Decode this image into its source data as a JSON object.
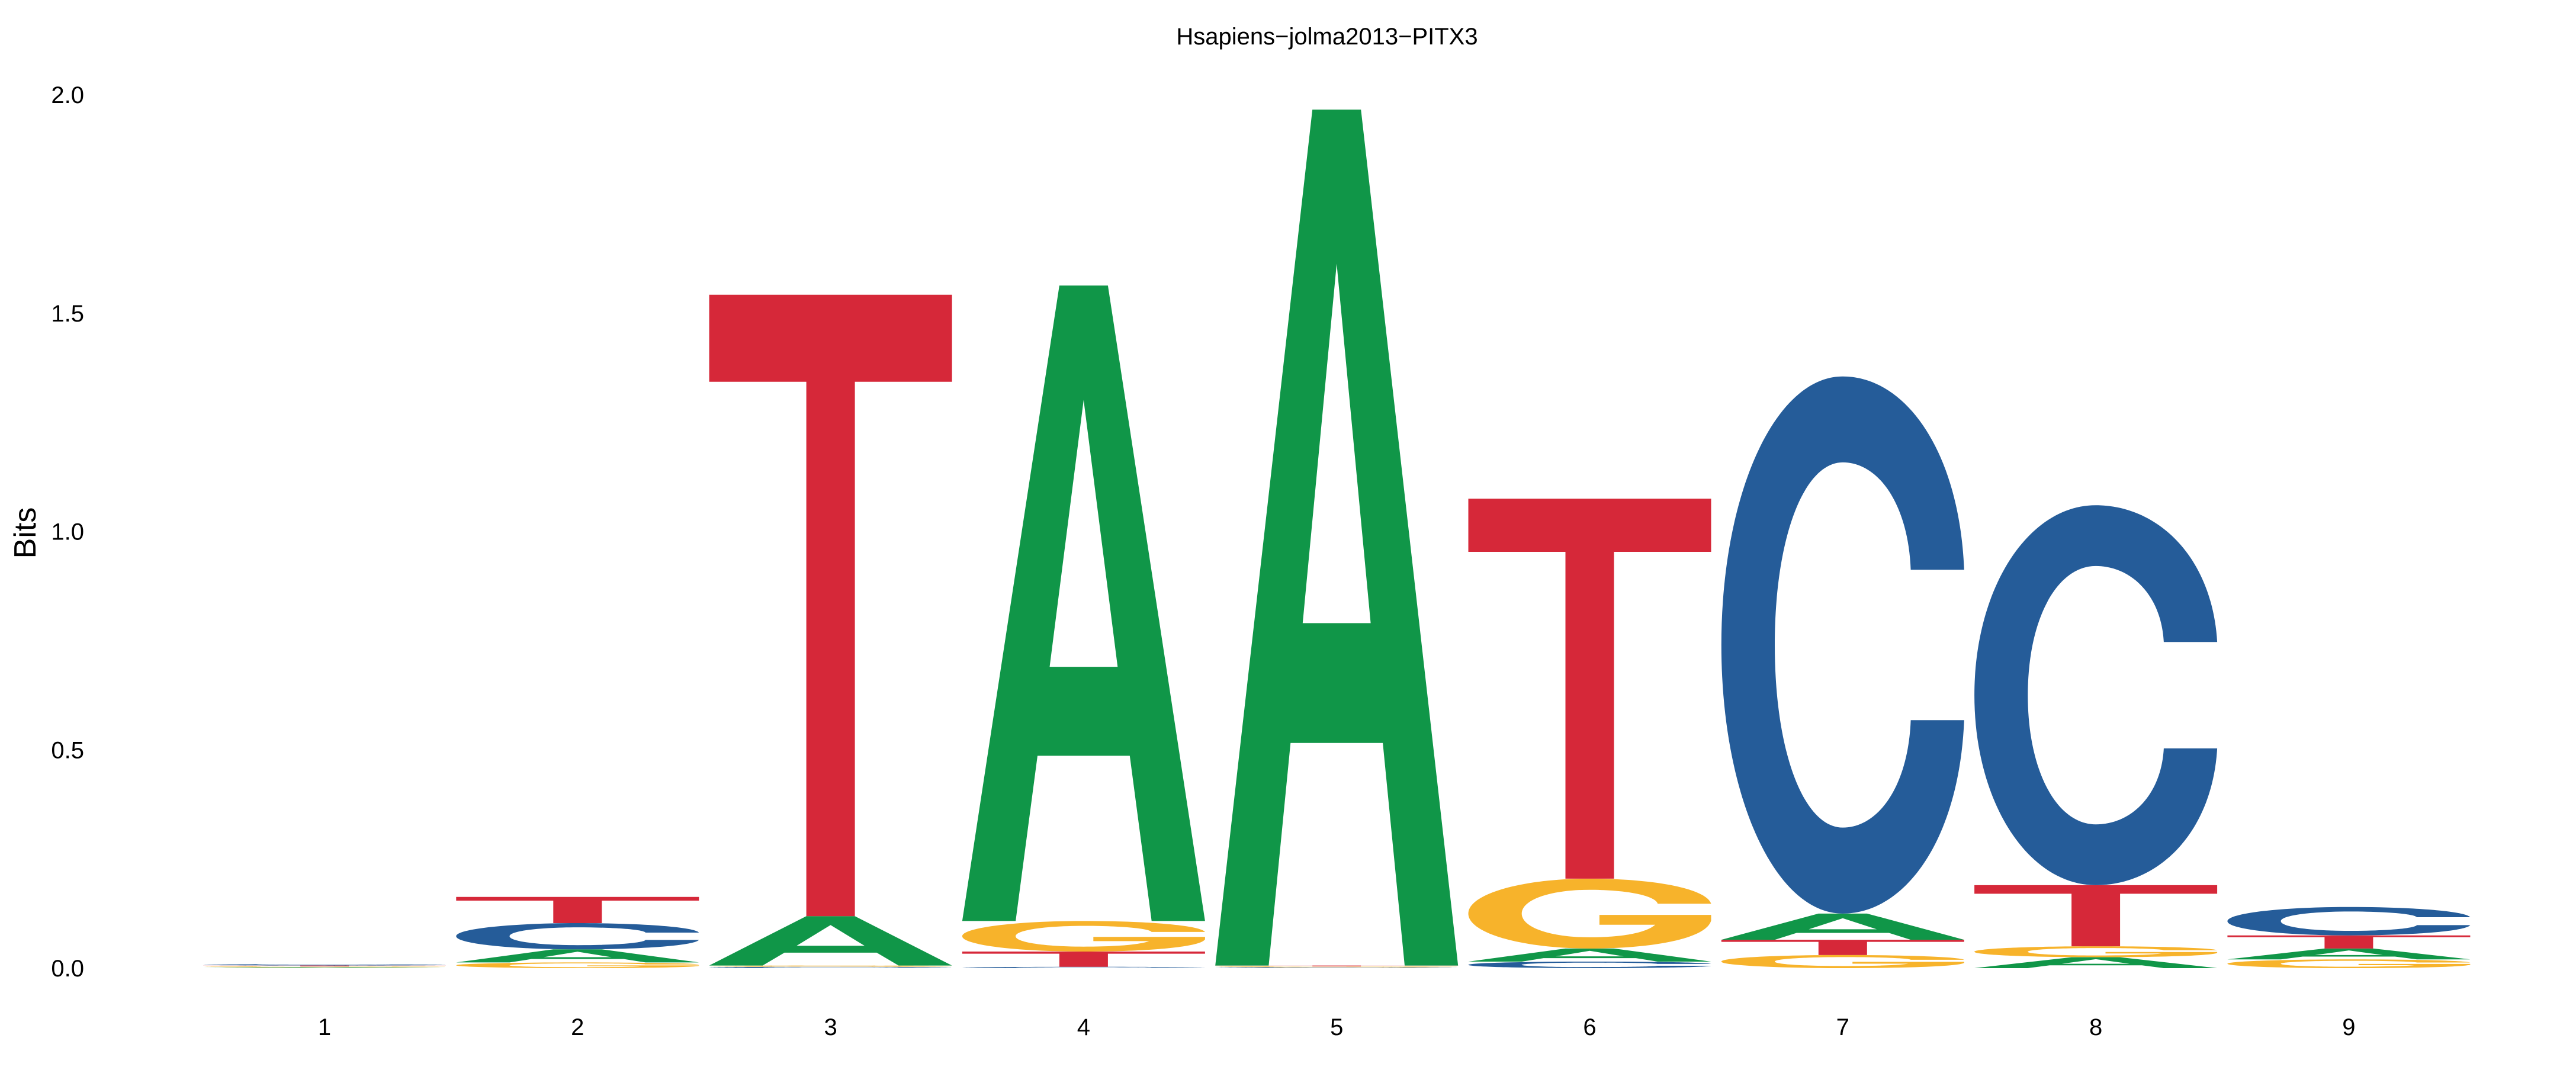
{
  "chart_data": {
    "type": "sequence_logo",
    "title": "Hsapiens−jolma2013−PITX3",
    "xlabel": "",
    "ylabel": "Bits",
    "ylim": [
      0,
      2.0
    ],
    "yticks": [
      "0.0",
      "0.5",
      "1.0",
      "1.5",
      "2.0"
    ],
    "positions": [
      "1",
      "2",
      "3",
      "4",
      "5",
      "6",
      "7",
      "8",
      "9"
    ],
    "colors": {
      "A": "#109648",
      "C": "#255C99",
      "G": "#F7B32B",
      "T": "#D62839"
    },
    "columns": [
      [
        {
          "letter": "A",
          "bits": 0.002
        },
        {
          "letter": "G",
          "bits": 0.002
        },
        {
          "letter": "T",
          "bits": 0.002
        },
        {
          "letter": "C",
          "bits": 0.003
        }
      ],
      [
        {
          "letter": "G",
          "bits": 0.013
        },
        {
          "letter": "A",
          "bits": 0.03
        },
        {
          "letter": "C",
          "bits": 0.06
        },
        {
          "letter": "T",
          "bits": 0.06
        }
      ],
      [
        {
          "letter": "C",
          "bits": 0.003
        },
        {
          "letter": "G",
          "bits": 0.003
        },
        {
          "letter": "A",
          "bits": 0.113
        },
        {
          "letter": "T",
          "bits": 1.423
        }
      ],
      [
        {
          "letter": "C",
          "bits": 0.003
        },
        {
          "letter": "T",
          "bits": 0.035
        },
        {
          "letter": "G",
          "bits": 0.07
        },
        {
          "letter": "A",
          "bits": 1.455
        }
      ],
      [
        {
          "letter": "C",
          "bits": 0.002
        },
        {
          "letter": "G",
          "bits": 0.002
        },
        {
          "letter": "T",
          "bits": 0.002
        },
        {
          "letter": "A",
          "bits": 1.96
        }
      ],
      [
        {
          "letter": "C",
          "bits": 0.015
        },
        {
          "letter": "A",
          "bits": 0.03
        },
        {
          "letter": "G",
          "bits": 0.16
        },
        {
          "letter": "T",
          "bits": 0.87
        }
      ],
      [
        {
          "letter": "G",
          "bits": 0.03
        },
        {
          "letter": "T",
          "bits": 0.035
        },
        {
          "letter": "A",
          "bits": 0.06
        },
        {
          "letter": "C",
          "bits": 1.23
        }
      ],
      [
        {
          "letter": "A",
          "bits": 0.025
        },
        {
          "letter": "G",
          "bits": 0.025
        },
        {
          "letter": "T",
          "bits": 0.14
        },
        {
          "letter": "C",
          "bits": 0.87
        }
      ],
      [
        {
          "letter": "G",
          "bits": 0.02
        },
        {
          "letter": "A",
          "bits": 0.025
        },
        {
          "letter": "T",
          "bits": 0.03
        },
        {
          "letter": "C",
          "bits": 0.065
        }
      ]
    ]
  }
}
